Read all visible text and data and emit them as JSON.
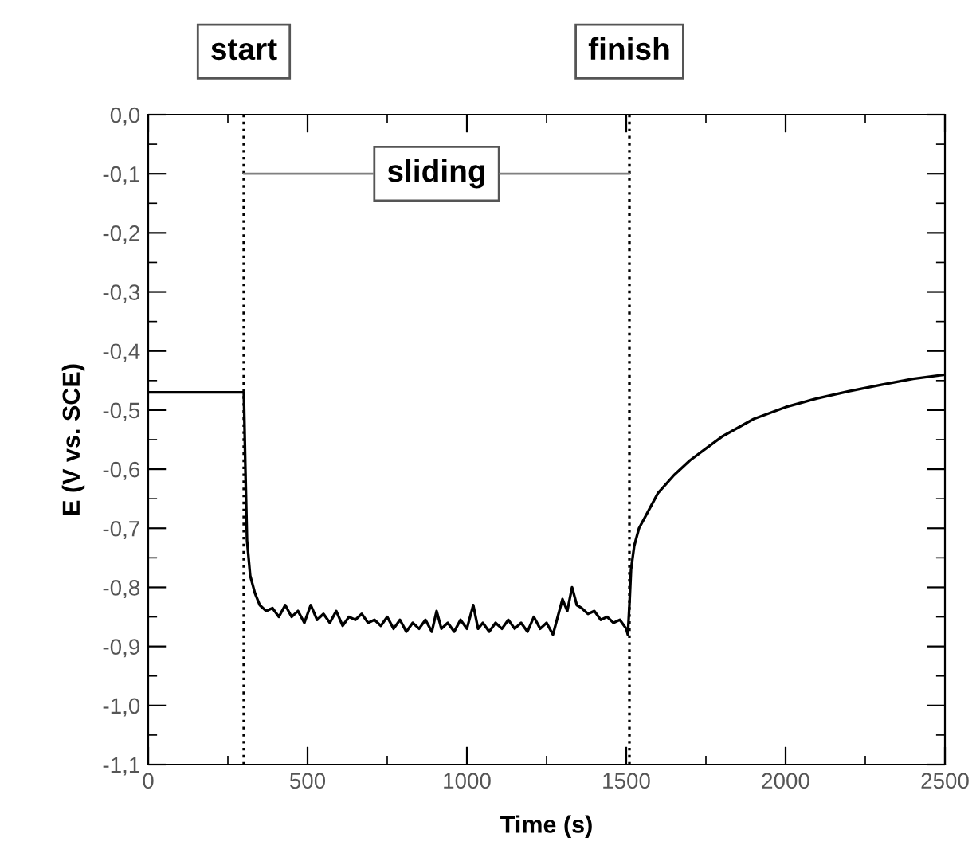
{
  "chart_data": {
    "type": "line",
    "xlabel": "Time (s)",
    "ylabel": "E (V vs. SCE)",
    "series": [
      {
        "color": "#000000",
        "x": [
          0,
          100,
          200,
          290,
          300,
          305,
          310,
          320,
          335,
          350,
          370,
          390,
          410,
          430,
          450,
          470,
          490,
          510,
          530,
          550,
          570,
          590,
          610,
          630,
          650,
          670,
          690,
          710,
          730,
          750,
          770,
          790,
          810,
          830,
          850,
          870,
          890,
          905,
          920,
          940,
          960,
          980,
          1000,
          1020,
          1035,
          1050,
          1070,
          1090,
          1110,
          1130,
          1150,
          1170,
          1190,
          1210,
          1230,
          1250,
          1270,
          1285,
          1300,
          1315,
          1330,
          1345,
          1360,
          1380,
          1400,
          1420,
          1440,
          1460,
          1480,
          1500,
          1505,
          1510,
          1515,
          1525,
          1540,
          1560,
          1580,
          1600,
          1650,
          1700,
          1750,
          1800,
          1900,
          2000,
          2100,
          2200,
          2300,
          2400,
          2500
        ],
        "values": [
          -0.47,
          -0.47,
          -0.47,
          -0.47,
          -0.47,
          -0.6,
          -0.72,
          -0.78,
          -0.81,
          -0.83,
          -0.84,
          -0.835,
          -0.85,
          -0.83,
          -0.85,
          -0.84,
          -0.86,
          -0.83,
          -0.855,
          -0.845,
          -0.86,
          -0.84,
          -0.865,
          -0.85,
          -0.855,
          -0.845,
          -0.86,
          -0.855,
          -0.865,
          -0.85,
          -0.87,
          -0.855,
          -0.875,
          -0.86,
          -0.87,
          -0.855,
          -0.875,
          -0.84,
          -0.87,
          -0.86,
          -0.875,
          -0.855,
          -0.87,
          -0.83,
          -0.87,
          -0.86,
          -0.875,
          -0.86,
          -0.87,
          -0.855,
          -0.87,
          -0.86,
          -0.875,
          -0.85,
          -0.87,
          -0.86,
          -0.88,
          -0.85,
          -0.82,
          -0.84,
          -0.8,
          -0.83,
          -0.835,
          -0.845,
          -0.84,
          -0.855,
          -0.85,
          -0.86,
          -0.855,
          -0.87,
          -0.88,
          -0.83,
          -0.77,
          -0.73,
          -0.7,
          -0.68,
          -0.66,
          -0.64,
          -0.61,
          -0.585,
          -0.565,
          -0.545,
          -0.515,
          -0.495,
          -0.48,
          -0.468,
          -0.457,
          -0.447,
          -0.44
        ]
      }
    ],
    "xlim": [
      0,
      2500
    ],
    "xticks": [
      0,
      500,
      1000,
      1500,
      2000,
      2500
    ],
    "ylim": [
      -1.1,
      0.0
    ],
    "yticks": [
      {
        "value": 0.0,
        "label": "0,0"
      },
      {
        "value": -0.1,
        "label": "-0,1"
      },
      {
        "value": -0.2,
        "label": "-0,2"
      },
      {
        "value": -0.3,
        "label": "-0,3"
      },
      {
        "value": -0.4,
        "label": "-0,4"
      },
      {
        "value": -0.5,
        "label": "-0,5"
      },
      {
        "value": -0.6,
        "label": "-0,6"
      },
      {
        "value": -0.7,
        "label": "-0,7"
      },
      {
        "value": -0.8,
        "label": "-0,8"
      },
      {
        "value": -0.9,
        "label": "-0,9"
      },
      {
        "value": -1.0,
        "label": "-1,0"
      },
      {
        "value": -1.1,
        "label": "-1,1"
      }
    ],
    "ref_lines": [
      {
        "axis": "x",
        "value": 300,
        "label": "start",
        "line_style": "dotted",
        "color": "#000000"
      },
      {
        "axis": "x",
        "value": 1510,
        "label": "finish",
        "line_style": "dotted",
        "color": "#000000"
      }
    ],
    "annotations": [
      {
        "text": "sliding",
        "x": 1510,
        "y": -0.1
      }
    ],
    "grid": false,
    "legend": false,
    "marker": "none",
    "line_style": "solid"
  }
}
